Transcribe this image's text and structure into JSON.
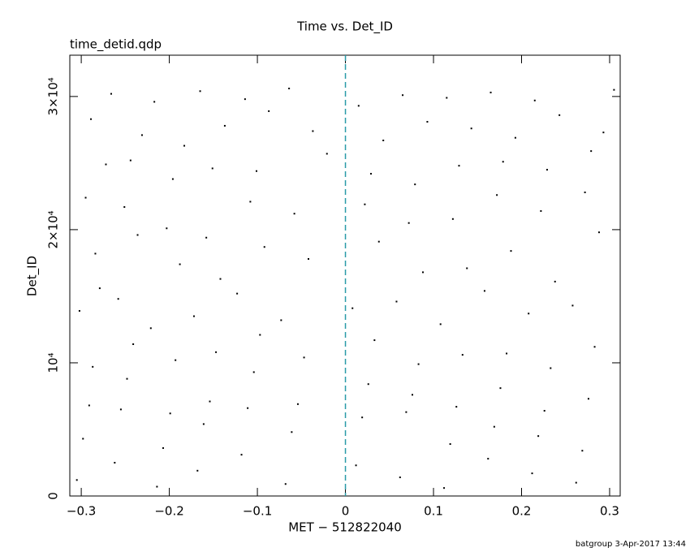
{
  "chart_data": {
    "type": "scatter",
    "title": "Time vs. Det_ID",
    "subtitle": "time_detid.qdp",
    "x_label": "MET − 512822040",
    "y_label": "Det_ID",
    "footer": "batgroup  3-Apr-2017 13:44",
    "color": "#000000",
    "reference_line": {
      "x": 0,
      "color": "#2a9aa8"
    },
    "xlim": [
      -0.313,
      0.312
    ],
    "ylim": [
      0,
      33100
    ],
    "xticks": [
      {
        "value": -0.3,
        "label": "−0.3"
      },
      {
        "value": -0.2,
        "label": "−0.2"
      },
      {
        "value": -0.1,
        "label": "−0.1"
      },
      0,
      0.1,
      0.2,
      0.3
    ],
    "yticks": [
      0,
      {
        "value": 10000,
        "label": "10⁴"
      },
      {
        "value": 20000,
        "label": "2×10⁴"
      },
      {
        "value": 30000,
        "label": "3×10⁴"
      }
    ],
    "x": [
      -0.305,
      -0.298,
      -0.291,
      -0.287,
      -0.302,
      -0.279,
      -0.284,
      -0.295,
      -0.272,
      -0.289,
      -0.262,
      -0.255,
      -0.248,
      -0.241,
      -0.258,
      -0.236,
      -0.251,
      -0.244,
      -0.231,
      -0.266,
      -0.214,
      -0.207,
      -0.199,
      -0.193,
      -0.221,
      -0.188,
      -0.203,
      -0.196,
      -0.183,
      -0.217,
      -0.168,
      -0.161,
      -0.154,
      -0.147,
      -0.172,
      -0.142,
      -0.158,
      -0.151,
      -0.137,
      -0.165,
      -0.118,
      -0.111,
      -0.104,
      -0.097,
      -0.123,
      -0.092,
      -0.108,
      -0.101,
      -0.087,
      -0.114,
      -0.068,
      -0.061,
      -0.054,
      -0.047,
      -0.073,
      -0.042,
      -0.058,
      -0.021,
      -0.037,
      -0.064,
      0.012,
      0.019,
      0.026,
      0.033,
      0.008,
      0.038,
      0.022,
      0.029,
      0.043,
      0.015,
      0.062,
      0.069,
      0.076,
      0.083,
      0.058,
      0.088,
      0.072,
      0.079,
      0.093,
      0.065,
      0.112,
      0.119,
      0.126,
      0.133,
      0.108,
      0.138,
      0.122,
      0.129,
      0.143,
      0.115,
      0.162,
      0.169,
      0.176,
      0.183,
      0.158,
      0.188,
      0.172,
      0.179,
      0.193,
      0.165,
      0.212,
      0.219,
      0.226,
      0.233,
      0.208,
      0.238,
      0.222,
      0.229,
      0.243,
      0.215,
      0.262,
      0.269,
      0.276,
      0.283,
      0.258,
      0.288,
      0.272,
      0.279,
      0.293,
      0.305
    ],
    "values": [
      1200,
      4300,
      6800,
      9700,
      13900,
      15600,
      18200,
      22400,
      24900,
      28300,
      2500,
      6500,
      8800,
      11400,
      14800,
      19600,
      21700,
      25200,
      27100,
      30200,
      700,
      3600,
      6200,
      10200,
      12600,
      17400,
      20100,
      23800,
      26300,
      29600,
      1900,
      5400,
      7100,
      10800,
      13500,
      16300,
      19400,
      24600,
      27800,
      30400,
      3100,
      6600,
      9300,
      12100,
      15200,
      18700,
      22100,
      24400,
      28900,
      29800,
      900,
      4800,
      6900,
      10400,
      13200,
      17800,
      21200,
      25700,
      27400,
      30600,
      2300,
      5900,
      8400,
      11700,
      14100,
      19100,
      21900,
      24200,
      26700,
      29300,
      1400,
      6300,
      7600,
      9900,
      14600,
      16800,
      20500,
      23400,
      28100,
      30100,
      600,
      3900,
      6700,
      10600,
      12900,
      17100,
      20800,
      24800,
      27600,
      29900,
      2800,
      5200,
      8100,
      10700,
      15400,
      18400,
      22600,
      25100,
      26900,
      30300,
      1700,
      4500,
      6400,
      9600,
      13700,
      16100,
      21400,
      24500,
      28600,
      29700,
      1000,
      3400,
      7300,
      11200,
      14300,
      19800,
      22800,
      25900,
      27300,
      30500
    ]
  }
}
